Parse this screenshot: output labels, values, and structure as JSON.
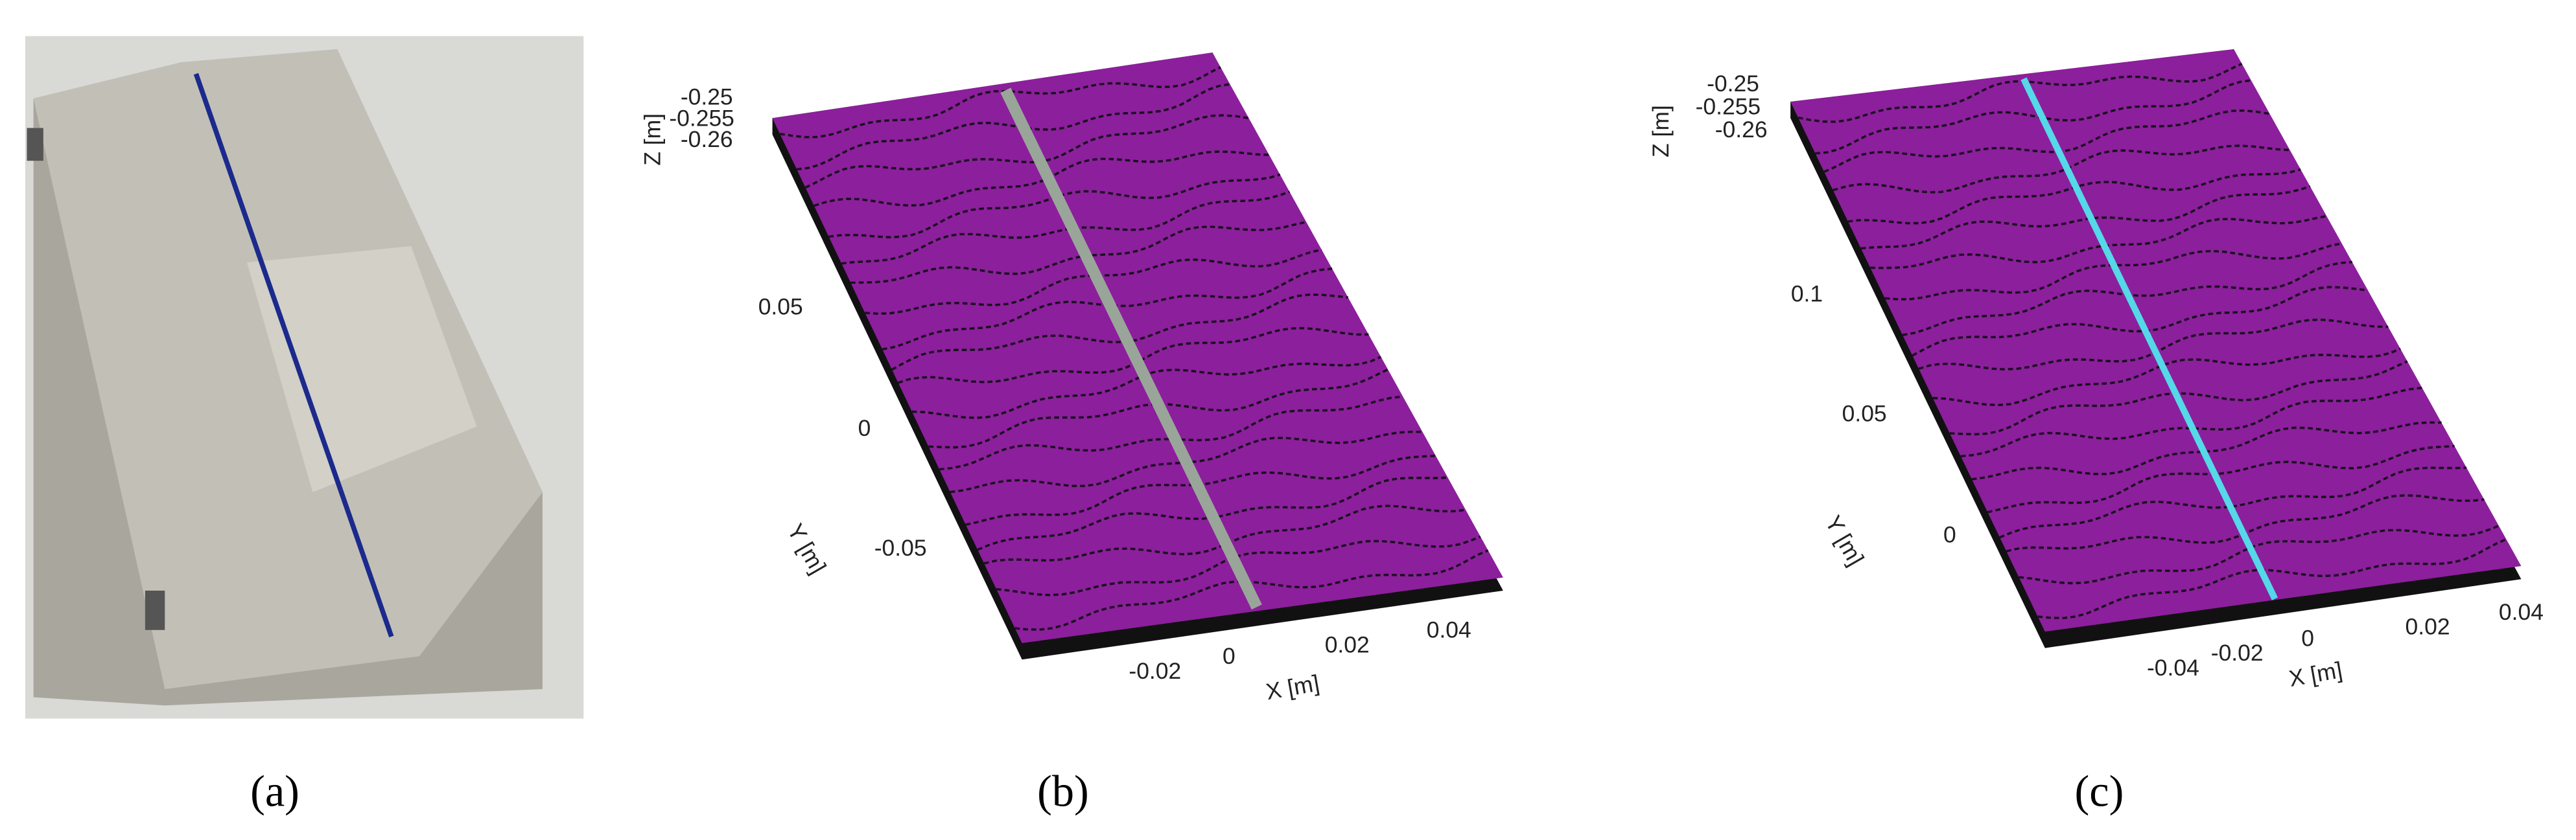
{
  "panels": [
    {
      "label": "(a)"
    },
    {
      "label": "(b)",
      "z_axis": {
        "label": "Z [m]",
        "ticks": [
          "-0.25",
          "-0.255",
          "-0.26"
        ]
      },
      "y_axis": {
        "label": "Y [m]",
        "ticks": [
          "0.05",
          "0",
          "-0.05"
        ]
      },
      "x_axis": {
        "label": "X [m]",
        "ticks": [
          "-0.02",
          "0",
          "0.02",
          "0.04"
        ]
      }
    },
    {
      "label": "(c)",
      "z_axis": {
        "label": "Z [m]",
        "ticks": [
          "-0.25",
          "-0.255",
          "-0.26"
        ]
      },
      "y_axis": {
        "label": "Y [m]",
        "ticks": [
          "0.1",
          "0.05",
          "0"
        ]
      },
      "x_axis": {
        "label": "X [m]",
        "ticks": [
          "-0.04",
          "-0.02",
          "0",
          "0.02",
          "0.04"
        ]
      }
    }
  ]
}
